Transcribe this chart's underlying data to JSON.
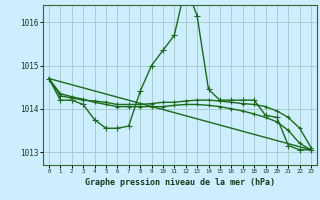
{
  "title": "Graphe pression niveau de la mer (hPa)",
  "bg_color": "#cceeff",
  "grid_color": "#aacccc",
  "line_color": "#1a6b1a",
  "ylim": [
    1012.7,
    1016.4
  ],
  "xlim": [
    -0.5,
    23.5
  ],
  "yticks": [
    1013,
    1014,
    1015,
    1016
  ],
  "xticks": [
    0,
    1,
    2,
    3,
    4,
    5,
    6,
    7,
    8,
    9,
    10,
    11,
    12,
    13,
    14,
    15,
    16,
    17,
    18,
    19,
    20,
    21,
    22,
    23
  ],
  "series": [
    {
      "x": [
        0,
        1,
        2,
        3,
        4,
        5,
        6,
        7,
        8,
        9,
        10,
        11,
        12,
        13,
        14,
        15,
        16,
        17,
        18,
        19,
        20,
        21,
        22,
        23
      ],
      "y": [
        1014.7,
        1014.2,
        1014.2,
        1014.1,
        1013.75,
        1013.55,
        1013.55,
        1013.6,
        1014.4,
        1015.0,
        1015.35,
        1015.7,
        1016.85,
        1016.15,
        1014.45,
        1014.2,
        1014.2,
        1014.2,
        1014.2,
        1013.85,
        1013.8,
        1013.15,
        1013.05,
        1013.05
      ],
      "marker": "+",
      "markersize": 4,
      "linewidth": 1.0
    },
    {
      "x": [
        0,
        1,
        2,
        3,
        4,
        5,
        6,
        7,
        8,
        9,
        10,
        11,
        12,
        13,
        14,
        15,
        16,
        17,
        18,
        19,
        20,
        21,
        22,
        23
      ],
      "y": [
        1014.7,
        1014.3,
        1014.25,
        1014.2,
        1014.18,
        1014.15,
        1014.1,
        1014.1,
        1014.1,
        1014.12,
        1014.15,
        1014.15,
        1014.18,
        1014.2,
        1014.2,
        1014.18,
        1014.15,
        1014.12,
        1014.1,
        1014.05,
        1013.95,
        1013.8,
        1013.55,
        1013.1
      ],
      "marker": "+",
      "markersize": 3,
      "linewidth": 1.0
    },
    {
      "x": [
        0,
        1,
        2,
        3,
        4,
        5,
        6,
        7,
        8,
        9,
        10,
        11,
        12,
        13,
        14,
        15,
        16,
        17,
        18,
        19,
        20,
        21,
        22,
        23
      ],
      "y": [
        1014.7,
        1014.35,
        1014.28,
        1014.22,
        1014.15,
        1014.1,
        1014.05,
        1014.05,
        1014.05,
        1014.05,
        1014.05,
        1014.08,
        1014.1,
        1014.1,
        1014.08,
        1014.05,
        1014.0,
        1013.95,
        1013.88,
        1013.8,
        1013.7,
        1013.5,
        1013.2,
        1013.05
      ],
      "marker": "+",
      "markersize": 3,
      "linewidth": 1.0
    },
    {
      "x": [
        0,
        23
      ],
      "y": [
        1014.7,
        1013.05
      ],
      "marker": null,
      "markersize": 0,
      "linewidth": 1.0
    }
  ]
}
